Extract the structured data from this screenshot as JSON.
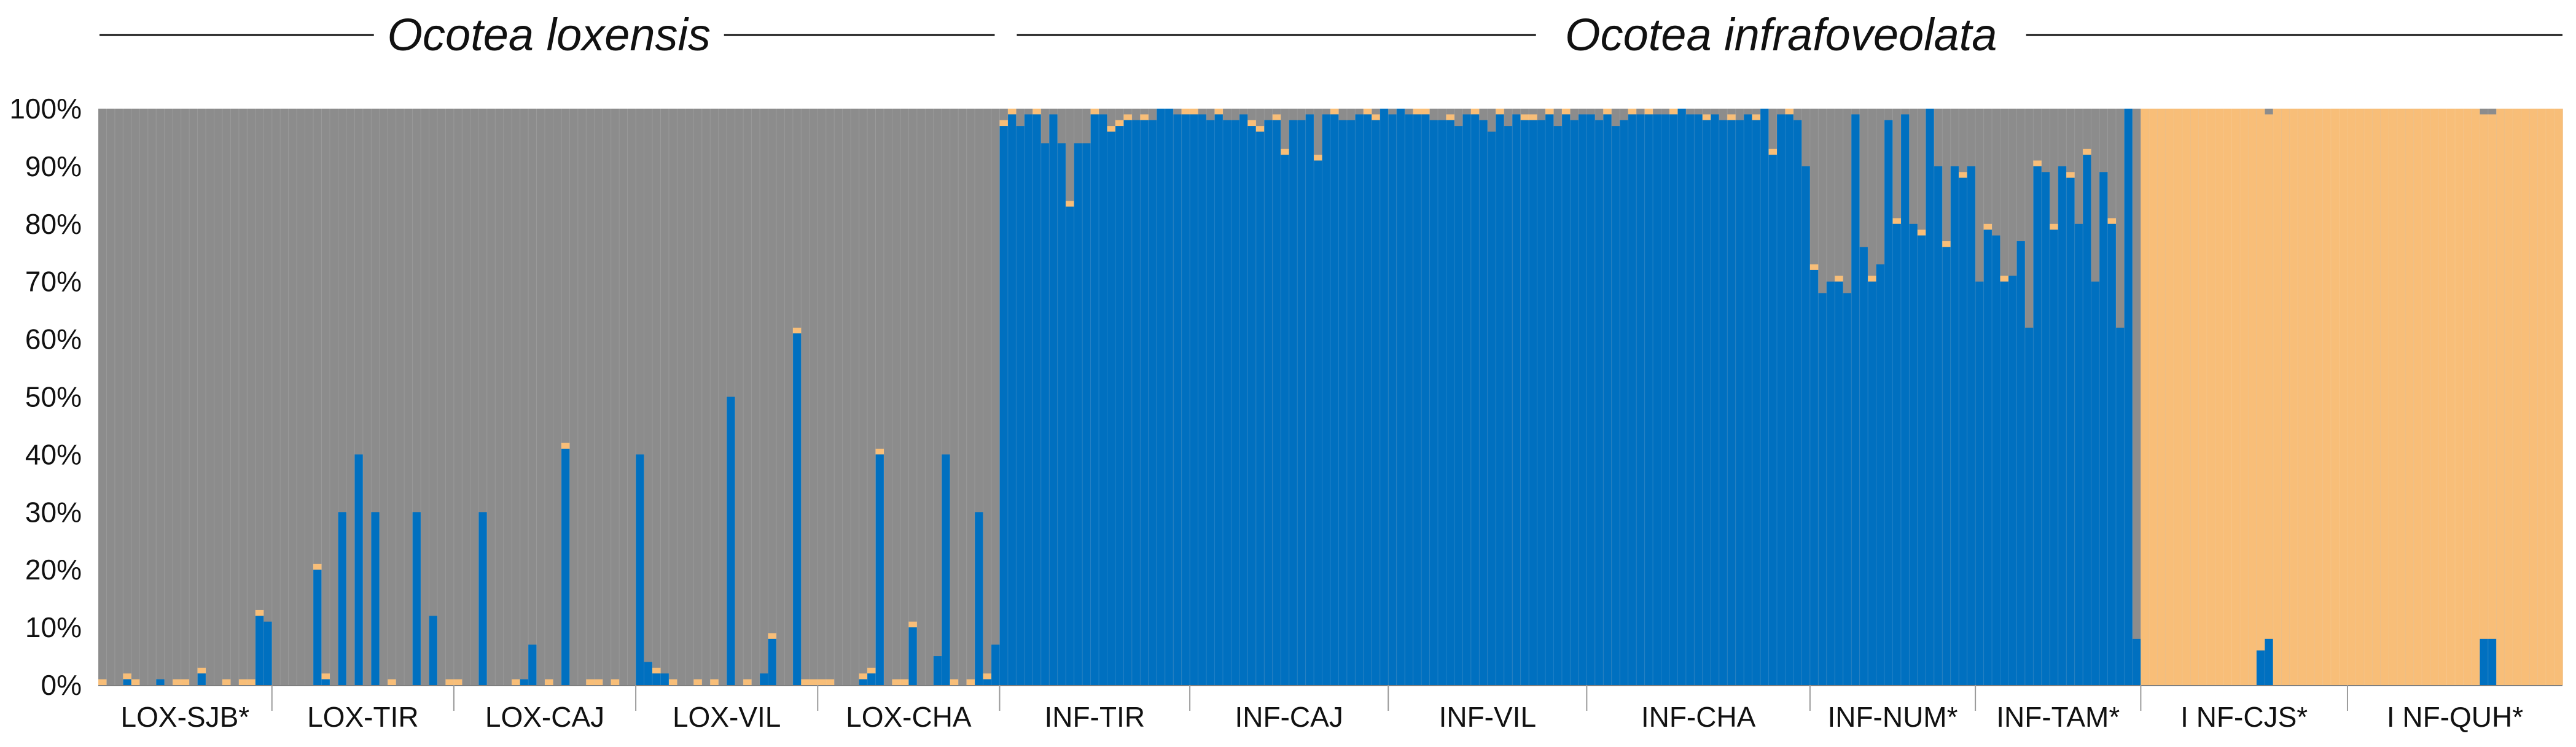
{
  "chart_data": {
    "type": "bar",
    "stacked": true,
    "orientation": "vertical",
    "grid": false,
    "ylim": [
      0,
      100
    ],
    "y_tick_labels": [
      "0%",
      "10%",
      "20%",
      "30%",
      "40%",
      "50%",
      "60%",
      "70%",
      "80%",
      "90%",
      "100%"
    ],
    "species": [
      "Ocotea loxensis",
      "Ocotea infrafoveolata"
    ],
    "clusters": [
      {
        "color": "#0070C0"
      },
      {
        "color": "#F8BE78"
      },
      {
        "color": "#8C8C8C"
      }
    ],
    "populations": [
      {
        "label": "LOX-SJB*",
        "species": 0,
        "blue": [
          0,
          0,
          0,
          1,
          0,
          0,
          0,
          1,
          0,
          0,
          0,
          0,
          2,
          0,
          0,
          0,
          0,
          0,
          0,
          12,
          11
        ],
        "orange": [
          1,
          0,
          0,
          1,
          1,
          0,
          0,
          0,
          0,
          1,
          1,
          0,
          1,
          0,
          0,
          1,
          0,
          1,
          1,
          1,
          0
        ]
      },
      {
        "label": "LOX-TIR",
        "species": 0,
        "blue": [
          0,
          0,
          0,
          0,
          0,
          20,
          1,
          0,
          30,
          0,
          40,
          0,
          30,
          0,
          0,
          0,
          0,
          30,
          0,
          12,
          0,
          0
        ],
        "orange": [
          0,
          0,
          0,
          0,
          0,
          1,
          1,
          0,
          0,
          0,
          0,
          0,
          0,
          0,
          1,
          0,
          0,
          0,
          0,
          0,
          0,
          1
        ]
      },
      {
        "label": "LOX-CAJ",
        "species": 0,
        "blue": [
          0,
          0,
          0,
          30,
          0,
          0,
          0,
          0,
          1,
          7,
          0,
          0,
          0,
          41,
          0,
          0,
          0,
          0,
          0,
          0,
          0,
          0
        ],
        "orange": [
          1,
          0,
          0,
          0,
          0,
          0,
          0,
          1,
          0,
          0,
          0,
          1,
          0,
          1,
          0,
          0,
          1,
          1,
          0,
          1,
          0,
          0
        ]
      },
      {
        "label": "LOX-VIL",
        "species": 0,
        "blue": [
          40,
          4,
          2,
          2,
          0,
          0,
          0,
          0,
          0,
          0,
          0,
          50,
          0,
          0,
          0,
          2,
          8,
          0,
          0,
          61,
          0,
          0
        ],
        "orange": [
          0,
          0,
          1,
          0,
          1,
          0,
          0,
          1,
          0,
          1,
          0,
          0,
          0,
          1,
          0,
          0,
          1,
          0,
          0,
          1,
          1,
          1
        ]
      },
      {
        "label": "LOX-CHA",
        "species": 0,
        "blue": [
          0,
          0,
          0,
          0,
          0,
          1,
          2,
          40,
          0,
          0,
          0,
          10,
          0,
          0,
          5,
          40,
          0,
          0,
          0,
          30,
          1,
          7
        ],
        "orange": [
          1,
          1,
          0,
          0,
          0,
          1,
          1,
          1,
          0,
          1,
          1,
          1,
          0,
          0,
          0,
          0,
          1,
          0,
          1,
          0,
          1,
          0
        ]
      },
      {
        "label": "INF-TIR",
        "species": 1,
        "blue": [
          97,
          99,
          97,
          99,
          99,
          94,
          99,
          94,
          83,
          94,
          94,
          99,
          99,
          96,
          97,
          98,
          98,
          98,
          98,
          100,
          100,
          99,
          99
        ],
        "orange": [
          1,
          1,
          0,
          0,
          1,
          0,
          0,
          0,
          1,
          0,
          0,
          1,
          0,
          1,
          1,
          1,
          0,
          1,
          0,
          0,
          0,
          0,
          1
        ]
      },
      {
        "label": "INF-CAJ",
        "species": 1,
        "blue": [
          99,
          99,
          98,
          99,
          98,
          98,
          99,
          97,
          96,
          98,
          98,
          92,
          98,
          98,
          99,
          91,
          99,
          99,
          98,
          98,
          99,
          99,
          98,
          100
        ],
        "orange": [
          1,
          0,
          0,
          1,
          0,
          0,
          0,
          1,
          1,
          0,
          1,
          1,
          0,
          0,
          0,
          1,
          0,
          1,
          0,
          0,
          0,
          1,
          1,
          0
        ]
      },
      {
        "label": "INF-VIL",
        "species": 1,
        "blue": [
          99,
          100,
          99,
          99,
          99,
          98,
          98,
          98,
          97,
          99,
          99,
          98,
          96,
          99,
          97,
          99,
          98,
          98,
          98,
          99,
          97,
          99,
          98,
          99
        ],
        "orange": [
          0,
          0,
          0,
          1,
          1,
          0,
          0,
          1,
          0,
          0,
          1,
          0,
          0,
          1,
          0,
          0,
          1,
          1,
          0,
          1,
          0,
          1,
          0,
          0
        ]
      },
      {
        "label": "INF-CHA",
        "species": 1,
        "blue": [
          99,
          98,
          99,
          97,
          98,
          99,
          99,
          99,
          99,
          99,
          99,
          100,
          99,
          99,
          98,
          99,
          98,
          98,
          98,
          99,
          98,
          100,
          92,
          99,
          99,
          98,
          90
        ],
        "orange": [
          0,
          0,
          1,
          0,
          0,
          1,
          0,
          1,
          0,
          0,
          1,
          0,
          0,
          0,
          1,
          0,
          0,
          1,
          0,
          0,
          1,
          0,
          1,
          0,
          1,
          0,
          0
        ]
      },
      {
        "label": "INF-NUM*",
        "species": 1,
        "blue": [
          72,
          68,
          70,
          70,
          68,
          99,
          76,
          70,
          73,
          98,
          80,
          99,
          80,
          78,
          100,
          90,
          76,
          90,
          88,
          90
        ],
        "orange": [
          1,
          0,
          0,
          1,
          0,
          0,
          0,
          1,
          0,
          0,
          1,
          0,
          0,
          1,
          0,
          0,
          1,
          0,
          1,
          0
        ]
      },
      {
        "label": "INF-TAM*",
        "species": 1,
        "blue": [
          70,
          79,
          78,
          70,
          71,
          77,
          62,
          90,
          89,
          79,
          90,
          88,
          80,
          92,
          70,
          89,
          80,
          62,
          100,
          8
        ],
        "orange": [
          0,
          1,
          0,
          1,
          0,
          0,
          0,
          1,
          0,
          1,
          0,
          1,
          0,
          1,
          0,
          0,
          1,
          0,
          0,
          0
        ]
      },
      {
        "label": "I NF-CJS*",
        "species": 1,
        "blue": [
          0,
          0,
          0,
          0,
          0,
          0,
          0,
          0,
          0,
          0,
          0,
          0,
          0,
          0,
          6,
          8,
          0,
          0,
          0,
          0,
          0,
          0,
          0,
          0,
          0
        ],
        "orange": [
          100,
          100,
          100,
          100,
          100,
          100,
          100,
          100,
          100,
          100,
          100,
          100,
          100,
          100,
          94,
          91,
          100,
          100,
          100,
          100,
          100,
          100,
          100,
          100,
          100
        ]
      },
      {
        "label": "I NF-QUH*",
        "species": 1,
        "blue": [
          0,
          0,
          0,
          0,
          0,
          0,
          0,
          0,
          0,
          0,
          0,
          0,
          0,
          0,
          0,
          0,
          8,
          8,
          0,
          0,
          0,
          0,
          0,
          0,
          0,
          0
        ],
        "orange": [
          100,
          100,
          100,
          100,
          100,
          100,
          100,
          100,
          100,
          100,
          100,
          100,
          100,
          100,
          100,
          100,
          91,
          91,
          100,
          100,
          100,
          100,
          100,
          100,
          100,
          100
        ]
      }
    ]
  }
}
